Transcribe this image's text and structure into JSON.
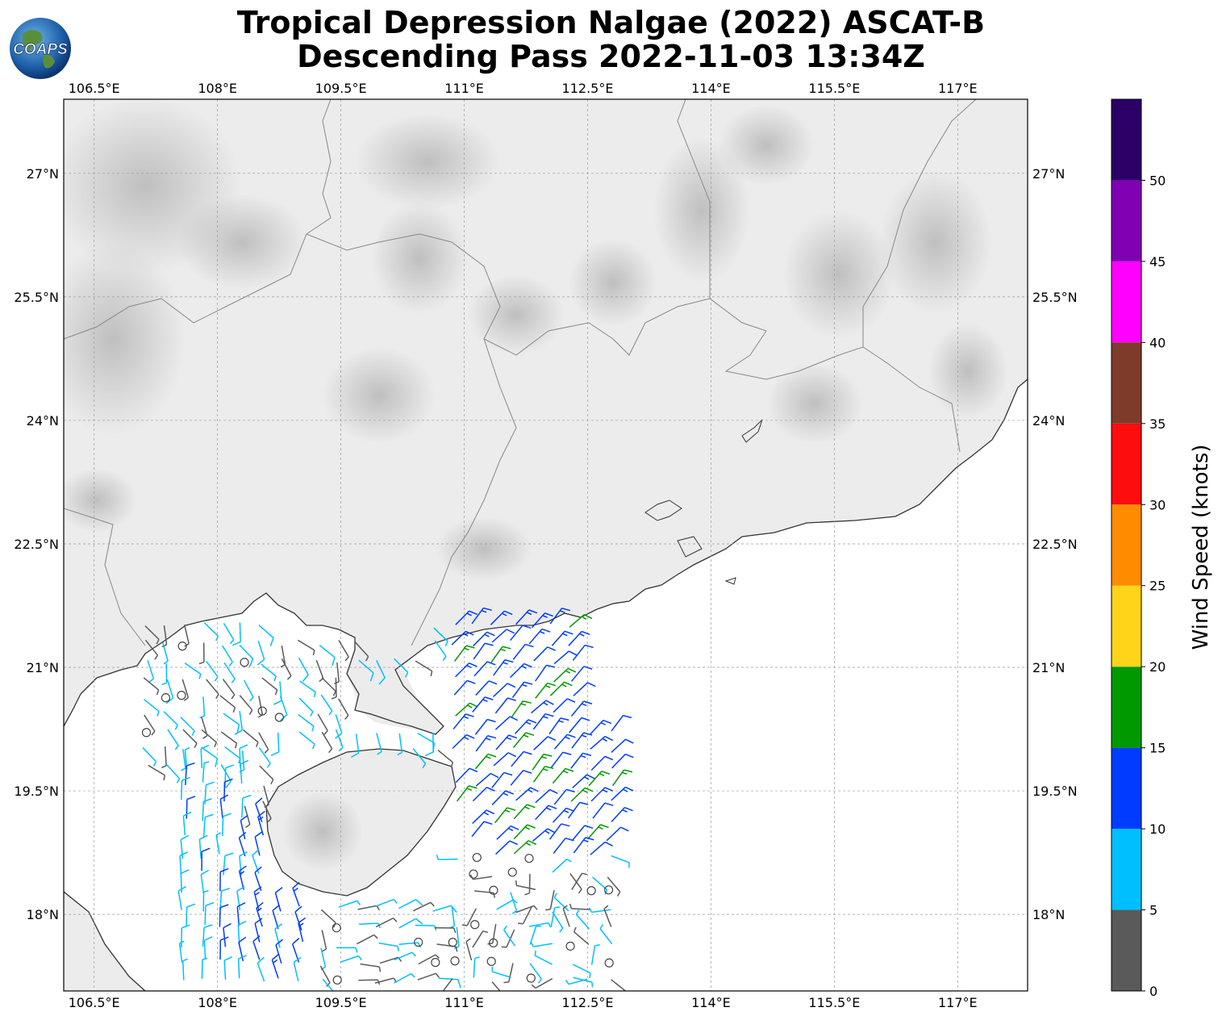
{
  "title": {
    "line1": "Tropical Depression Nalgae (2022) ASCAT-B",
    "line2": "Descending Pass 2022-11-03 13:34Z"
  },
  "logo": {
    "text": "COAPS",
    "icon": "globe-icon"
  },
  "map": {
    "lon_range": [
      106.13,
      117.85
    ],
    "lat_range": [
      17.07,
      27.9
    ],
    "lon_ticks": [
      "106.5°E",
      "108°E",
      "109.5°E",
      "111°E",
      "112.5°E",
      "114°E",
      "115.5°E",
      "117°E"
    ],
    "lon_tick_values": [
      106.5,
      108,
      109.5,
      111,
      112.5,
      114,
      115.5,
      117
    ],
    "lat_ticks": [
      "18°N",
      "19.5°N",
      "21°N",
      "22.5°N",
      "24°N",
      "25.5°N",
      "27°N"
    ],
    "lat_tick_values": [
      18,
      19.5,
      21,
      22.5,
      24,
      25.5,
      27
    ],
    "grid": true,
    "background": "grayscale terrain over land, white ocean"
  },
  "colorbar": {
    "title": "Wind Speed (knots)",
    "range": [
      0,
      55
    ],
    "labels": [
      "0",
      "5",
      "10",
      "15",
      "20",
      "25",
      "30",
      "35",
      "40",
      "45",
      "50"
    ],
    "bins": [
      {
        "from": 0,
        "to": 5,
        "color": "#5a5a5a"
      },
      {
        "from": 5,
        "to": 10,
        "color": "#00bfff"
      },
      {
        "from": 10,
        "to": 15,
        "color": "#003cff"
      },
      {
        "from": 15,
        "to": 20,
        "color": "#009900"
      },
      {
        "from": 20,
        "to": 25,
        "color": "#ffd419"
      },
      {
        "from": 25,
        "to": 30,
        "color": "#ff8c00"
      },
      {
        "from": 30,
        "to": 35,
        "color": "#ff0d0d"
      },
      {
        "from": 35,
        "to": 40,
        "color": "#7f3b2a"
      },
      {
        "from": 40,
        "to": 45,
        "color": "#ff00ff"
      },
      {
        "from": 45,
        "to": 50,
        "color": "#8000b3"
      },
      {
        "from": 50,
        "to": 55,
        "color": "#2b0066"
      }
    ]
  }
}
